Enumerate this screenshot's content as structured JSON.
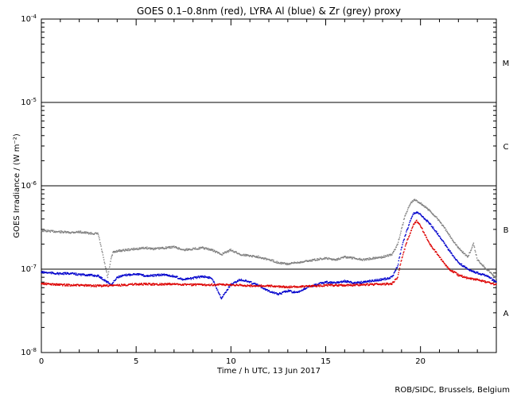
{
  "chart_data": {
    "type": "line",
    "title": "GOES 0.1–0.8nm (red), LYRA Al (blue) & Zr (grey) proxy",
    "xlabel": "Time / h UTC, 13 Jun 2017",
    "ylabel": "GOES Irradiance / (W m⁻²)",
    "xlim": [
      0,
      24
    ],
    "ylim": [
      1e-08,
      0.0001
    ],
    "y_scale": "log",
    "x_ticks": [
      0,
      5,
      10,
      15,
      20
    ],
    "x_tick_labels": [
      "0",
      "5",
      "10",
      "15",
      "20"
    ],
    "y_ticks": [
      1e-08,
      1e-07,
      1e-06,
      1e-05,
      0.0001
    ],
    "y_tick_labels": [
      {
        "mant": "10",
        "exp": "-8"
      },
      {
        "mant": "10",
        "exp": "-7"
      },
      {
        "mant": "10",
        "exp": "-6"
      },
      {
        "mant": "10",
        "exp": "-5"
      },
      {
        "mant": "10",
        "exp": "-4"
      }
    ],
    "threshold_lines": [
      1e-07,
      1e-06,
      1e-05
    ],
    "flare_classes": [
      {
        "label": "A",
        "level": 3e-08
      },
      {
        "label": "B",
        "level": 3e-07
      },
      {
        "label": "C",
        "level": 3e-06
      },
      {
        "label": "M",
        "level": 3e-05
      }
    ],
    "series": [
      {
        "color": "#808080",
        "points": [
          [
            0.0,
            2.9e-07
          ],
          [
            0.5,
            2.85e-07
          ],
          [
            1.0,
            2.8e-07
          ],
          [
            1.5,
            2.75e-07
          ],
          [
            2.0,
            2.8e-07
          ],
          [
            2.5,
            2.7e-07
          ],
          [
            3.0,
            2.65e-07
          ],
          [
            3.5,
            8e-08
          ],
          [
            3.7,
            1.4e-07
          ],
          [
            3.8,
            1.6e-07
          ],
          [
            4.0,
            1.65e-07
          ],
          [
            4.5,
            1.7e-07
          ],
          [
            5.0,
            1.75e-07
          ],
          [
            5.5,
            1.8e-07
          ],
          [
            6.0,
            1.75e-07
          ],
          [
            6.5,
            1.8e-07
          ],
          [
            7.0,
            1.85e-07
          ],
          [
            7.5,
            1.7e-07
          ],
          [
            8.0,
            1.75e-07
          ],
          [
            8.5,
            1.8e-07
          ],
          [
            9.0,
            1.7e-07
          ],
          [
            9.5,
            1.5e-07
          ],
          [
            10.0,
            1.7e-07
          ],
          [
            10.5,
            1.5e-07
          ],
          [
            11.0,
            1.45e-07
          ],
          [
            11.5,
            1.4e-07
          ],
          [
            12.0,
            1.3e-07
          ],
          [
            12.5,
            1.2e-07
          ],
          [
            13.0,
            1.15e-07
          ],
          [
            13.5,
            1.2e-07
          ],
          [
            14.0,
            1.25e-07
          ],
          [
            14.5,
            1.3e-07
          ],
          [
            15.0,
            1.35e-07
          ],
          [
            15.5,
            1.3e-07
          ],
          [
            16.0,
            1.4e-07
          ],
          [
            16.5,
            1.35e-07
          ],
          [
            17.0,
            1.3e-07
          ],
          [
            17.5,
            1.35e-07
          ],
          [
            18.0,
            1.4e-07
          ],
          [
            18.5,
            1.5e-07
          ],
          [
            18.8,
            2e-07
          ],
          [
            19.0,
            3e-07
          ],
          [
            19.2,
            4.5e-07
          ],
          [
            19.5,
            6.3e-07
          ],
          [
            19.7,
            6.8e-07
          ],
          [
            20.0,
            6.2e-07
          ],
          [
            20.5,
            5e-07
          ],
          [
            21.0,
            3.8e-07
          ],
          [
            21.5,
            2.6e-07
          ],
          [
            22.0,
            1.8e-07
          ],
          [
            22.5,
            1.4e-07
          ],
          [
            22.8,
            2e-07
          ],
          [
            23.0,
            1.3e-07
          ],
          [
            23.5,
            1e-07
          ],
          [
            24.0,
            7.8e-08
          ]
        ]
      },
      {
        "color": "#0000cc",
        "points": [
          [
            0.0,
            9.2e-08
          ],
          [
            0.5,
            9e-08
          ],
          [
            1.0,
            8.8e-08
          ],
          [
            1.5,
            8.9e-08
          ],
          [
            2.0,
            8.6e-08
          ],
          [
            2.5,
            8.5e-08
          ],
          [
            3.0,
            8.3e-08
          ],
          [
            3.7,
            6.5e-08
          ],
          [
            4.0,
            8e-08
          ],
          [
            4.5,
            8.5e-08
          ],
          [
            5.0,
            8.8e-08
          ],
          [
            5.5,
            8.3e-08
          ],
          [
            6.0,
            8.4e-08
          ],
          [
            6.5,
            8.6e-08
          ],
          [
            7.0,
            8.2e-08
          ],
          [
            7.5,
            7.5e-08
          ],
          [
            8.0,
            7.8e-08
          ],
          [
            8.5,
            8.2e-08
          ],
          [
            9.0,
            7.8e-08
          ],
          [
            9.5,
            4.5e-08
          ],
          [
            10.0,
            6.5e-08
          ],
          [
            10.5,
            7.5e-08
          ],
          [
            11.0,
            7e-08
          ],
          [
            11.5,
            6.3e-08
          ],
          [
            12.0,
            5.5e-08
          ],
          [
            12.5,
            5e-08
          ],
          [
            13.0,
            5.5e-08
          ],
          [
            13.5,
            5.2e-08
          ],
          [
            14.0,
            6e-08
          ],
          [
            14.5,
            6.5e-08
          ],
          [
            15.0,
            7e-08
          ],
          [
            15.5,
            6.8e-08
          ],
          [
            16.0,
            7.2e-08
          ],
          [
            16.5,
            6.8e-08
          ],
          [
            17.0,
            7e-08
          ],
          [
            17.5,
            7.3e-08
          ],
          [
            18.0,
            7.5e-08
          ],
          [
            18.5,
            8e-08
          ],
          [
            18.8,
            1.1e-07
          ],
          [
            19.0,
            1.8e-07
          ],
          [
            19.3,
            3e-07
          ],
          [
            19.6,
            4.6e-07
          ],
          [
            19.8,
            4.8e-07
          ],
          [
            20.0,
            4.5e-07
          ],
          [
            20.5,
            3.5e-07
          ],
          [
            21.0,
            2.5e-07
          ],
          [
            21.5,
            1.7e-07
          ],
          [
            22.0,
            1.2e-07
          ],
          [
            22.5,
            1e-07
          ],
          [
            23.0,
            9e-08
          ],
          [
            23.5,
            8.3e-08
          ],
          [
            24.0,
            7e-08
          ]
        ]
      },
      {
        "color": "#dd0000",
        "points": [
          [
            0.0,
            6.7e-08
          ],
          [
            1.0,
            6.5e-08
          ],
          [
            2.0,
            6.4e-08
          ],
          [
            3.0,
            6.3e-08
          ],
          [
            4.0,
            6.4e-08
          ],
          [
            5.0,
            6.6e-08
          ],
          [
            6.0,
            6.6e-08
          ],
          [
            7.0,
            6.6e-08
          ],
          [
            8.0,
            6.5e-08
          ],
          [
            9.0,
            6.5e-08
          ],
          [
            10.0,
            6.5e-08
          ],
          [
            11.0,
            6.3e-08
          ],
          [
            12.0,
            6.3e-08
          ],
          [
            13.0,
            6.1e-08
          ],
          [
            14.0,
            6.2e-08
          ],
          [
            15.0,
            6.4e-08
          ],
          [
            16.0,
            6.4e-08
          ],
          [
            17.0,
            6.5e-08
          ],
          [
            18.0,
            6.6e-08
          ],
          [
            18.5,
            6.7e-08
          ],
          [
            18.8,
            8e-08
          ],
          [
            19.0,
            1.3e-07
          ],
          [
            19.3,
            2.2e-07
          ],
          [
            19.6,
            3.3e-07
          ],
          [
            19.8,
            3.8e-07
          ],
          [
            20.0,
            3.3e-07
          ],
          [
            20.5,
            2e-07
          ],
          [
            21.0,
            1.4e-07
          ],
          [
            21.5,
            1e-07
          ],
          [
            22.0,
            8.5e-08
          ],
          [
            22.5,
            7.8e-08
          ],
          [
            23.0,
            7.5e-08
          ],
          [
            23.5,
            7e-08
          ],
          [
            24.0,
            6.5e-08
          ]
        ]
      }
    ],
    "credit": "ROB/SIDC, Brussels, Belgium"
  }
}
